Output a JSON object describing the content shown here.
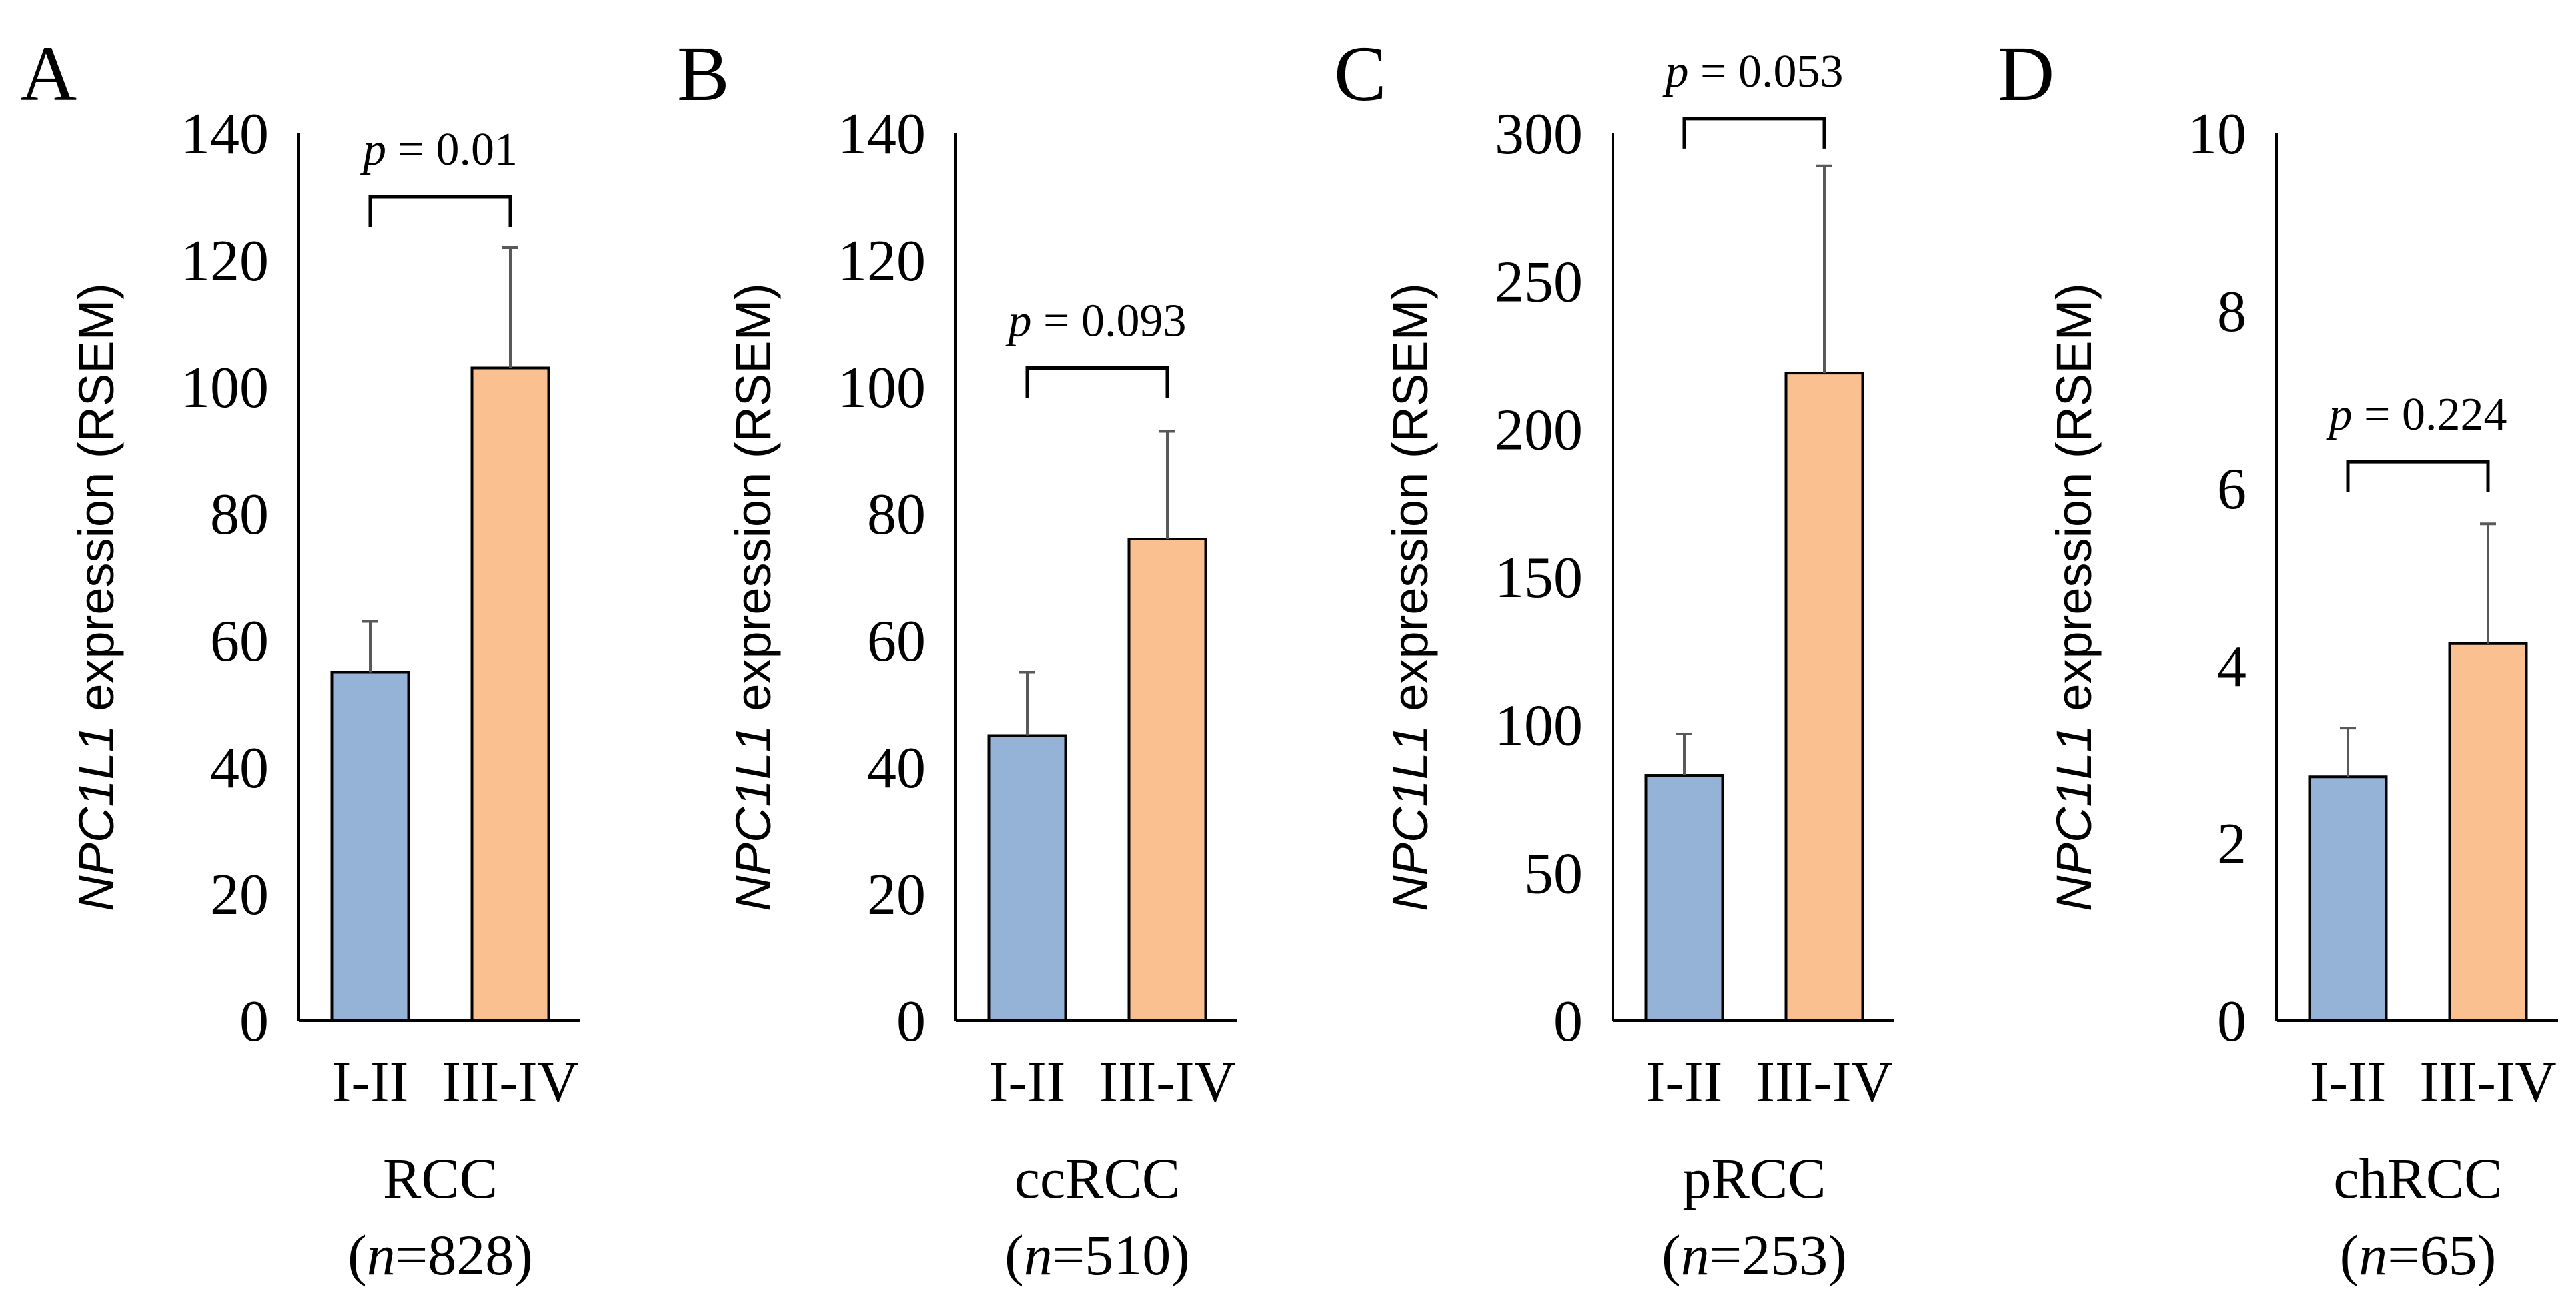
{
  "colors": {
    "group1_fill": "#95b3d7",
    "group2_fill": "#fac090",
    "stroke": "#000000",
    "error_bar": "#595959"
  },
  "chart_data": [
    {
      "type": "bar",
      "panel_label": "A",
      "categories": [
        "I-II",
        "III-IV"
      ],
      "values": [
        55,
        103
      ],
      "error_upper": [
        63,
        122
      ],
      "ylim": [
        0,
        140
      ],
      "yticks": [
        "0",
        "20",
        "40",
        "60",
        "80",
        "100",
        "120",
        "140"
      ],
      "ylabel_gene": "NPC1L1",
      "ylabel_rest": " expression (RSEM)",
      "significance": {
        "p_symbol": "p",
        "p_text": " = 0.01",
        "bracket_value": 130
      },
      "cohort": "RCC",
      "n_symbol": "n",
      "n_prefix": "(",
      "n_text": "=828)"
    },
    {
      "type": "bar",
      "panel_label": "B",
      "categories": [
        "I-II",
        "III-IV"
      ],
      "values": [
        45,
        76
      ],
      "error_upper": [
        55,
        93
      ],
      "ylim": [
        0,
        140
      ],
      "yticks": [
        "0",
        "20",
        "40",
        "60",
        "80",
        "100",
        "120",
        "140"
      ],
      "ylabel_gene": "NPC1L1",
      "ylabel_rest": " expression (RSEM)",
      "significance": {
        "p_symbol": "p",
        "p_text": " = 0.093",
        "bracket_value": 103
      },
      "cohort": "ccRCC",
      "n_symbol": "n",
      "n_prefix": "(",
      "n_text": "=510)"
    },
    {
      "type": "bar",
      "panel_label": "C",
      "categories": [
        "I-II",
        "III-IV"
      ],
      "values": [
        83,
        219
      ],
      "error_upper": [
        97,
        289
      ],
      "ylim": [
        0,
        300
      ],
      "yticks": [
        "0",
        "50",
        "100",
        "150",
        "200",
        "250",
        "300"
      ],
      "ylabel_gene": "NPC1L1",
      "ylabel_rest": " expression (RSEM)",
      "significance": {
        "p_symbol": "p",
        "p_text": " = 0.053",
        "bracket_value": 305
      },
      "cohort": "pRCC",
      "n_symbol": "n",
      "n_prefix": "(",
      "n_text": "=253)"
    },
    {
      "type": "bar",
      "panel_label": "D",
      "categories": [
        "I-II",
        "III-IV"
      ],
      "values": [
        2.75,
        4.25
      ],
      "error_upper": [
        3.3,
        5.6
      ],
      "ylim": [
        0,
        10
      ],
      "yticks": [
        "0",
        "2",
        "4",
        "6",
        "8",
        "10"
      ],
      "ylabel_gene": "NPC1L1",
      "ylabel_rest": " expression (RSEM)",
      "significance": {
        "p_symbol": "p",
        "p_text": " = 0.224",
        "bracket_value": 6.3
      },
      "cohort": "chRCC",
      "n_symbol": "n",
      "n_prefix": "(",
      "n_text": "=65)"
    }
  ]
}
